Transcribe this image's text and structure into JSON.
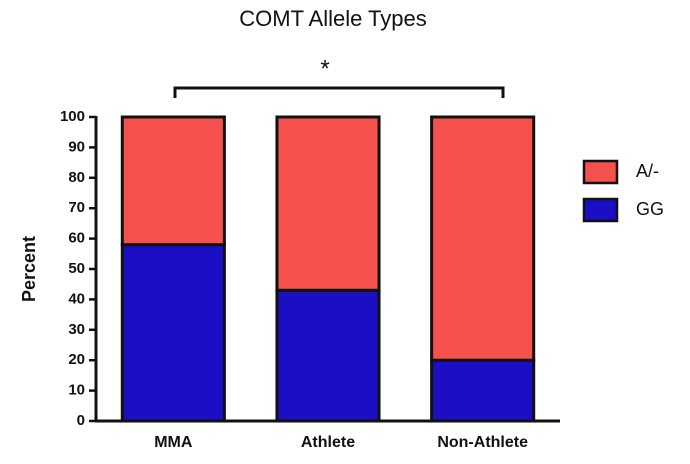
{
  "chart_data": {
    "type": "stacked_bar",
    "title": "COMT Allele Types",
    "y_label": "Percent",
    "annotation": "*",
    "categories": [
      "MMA",
      "Athlete",
      "Non-Athlete"
    ],
    "series": [
      {
        "name": "GG",
        "color": "#1c0ec4",
        "values": [
          58,
          43,
          20
        ]
      },
      {
        "name": "A/-",
        "color": "#f4514d",
        "values": [
          42,
          57,
          80
        ]
      }
    ],
    "ylim": [
      0,
      100
    ],
    "yticks": [
      0,
      10,
      20,
      30,
      40,
      50,
      60,
      70,
      80,
      90,
      100
    ],
    "legend": "right"
  }
}
